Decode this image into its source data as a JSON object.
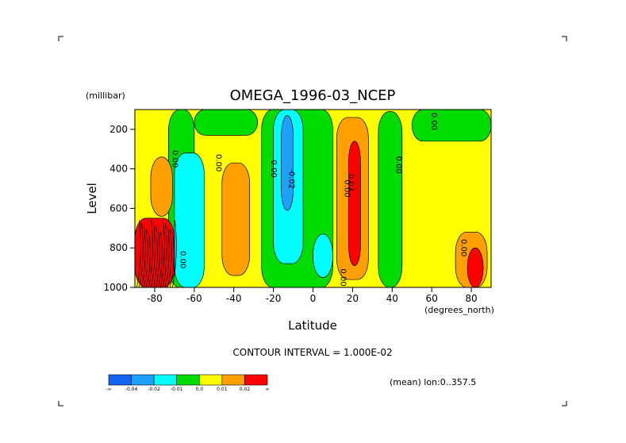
{
  "chart_data": {
    "type": "contour",
    "title": "OMEGA_1996-03_NCEP",
    "xlabel": "Latitude",
    "x_unit_label": "(degrees_north)",
    "ylabel": "Level",
    "y_unit_label": "(millibar)",
    "xlim": [
      -90,
      90
    ],
    "ylim": [
      1000,
      100
    ],
    "y_inverted": true,
    "x_ticks": [
      -80,
      -60,
      -40,
      -20,
      0,
      20,
      40,
      60,
      80
    ],
    "x_tick_labels": [
      "-80",
      "-60",
      "-40",
      "-20",
      "0",
      "20",
      "40",
      "60",
      "80"
    ],
    "y_ticks": [
      200,
      400,
      600,
      800,
      1000
    ],
    "y_tick_labels": [
      "200",
      "400",
      "600",
      "800",
      "1000"
    ],
    "contour_interval_text": "CONTOUR INTERVAL = 1.000E-02",
    "mean_text": "(mean) lon:0..357.5",
    "contour_labels": [
      {
        "text": "0.00",
        "lat": -71,
        "p": 350
      },
      {
        "text": "0.00",
        "lat": -49,
        "p": 370
      },
      {
        "text": "0.00",
        "lat": -21,
        "p": 400
      },
      {
        "text": "-0.02",
        "lat": -12,
        "p": 450
      },
      {
        "text": "0.02",
        "lat": 18,
        "p": 470
      },
      {
        "text": "0.00",
        "lat": 16,
        "p": 500
      },
      {
        "text": "0.00",
        "lat": 42,
        "p": 380
      },
      {
        "text": "0.00",
        "lat": 60,
        "p": 160
      },
      {
        "text": "0.00",
        "lat": 75,
        "p": 800
      },
      {
        "text": "0.00",
        "lat": -67,
        "p": 860
      },
      {
        "text": "0.00",
        "lat": 14,
        "p": 950
      }
    ],
    "colorbar": {
      "colors": [
        "#1464f0",
        "#1ea0ff",
        "#00ffff",
        "#00dc00",
        "#ffff00",
        "#ffa000",
        "#ff0000"
      ],
      "labels": [
        "-∞",
        "-0.04",
        "-0.02",
        "-0.01",
        "0.0",
        "0.01",
        "0.02",
        "∞"
      ]
    },
    "regions": [
      {
        "level": "positive_0_0.01",
        "color": "#ffff00",
        "lat_range": [
          -90,
          90
        ],
        "p_range": [
          100,
          1000
        ],
        "note": "background"
      },
      {
        "level": "negative_0_-0.01",
        "color": "#00dc00",
        "lat_range": [
          -73,
          -60
        ],
        "p_range": [
          100,
          1000
        ]
      },
      {
        "level": "negative_0_-0.01",
        "color": "#00dc00",
        "lat_range": [
          -60,
          -28
        ],
        "p_range": [
          100,
          230
        ]
      },
      {
        "level": "negative_0_-0.01",
        "color": "#00dc00",
        "lat_range": [
          -26,
          10
        ],
        "p_range": [
          100,
          1000
        ]
      },
      {
        "level": "negative_0_-0.01",
        "color": "#00dc00",
        "lat_range": [
          33,
          45
        ],
        "p_range": [
          110,
          1000
        ]
      },
      {
        "level": "negative_0_-0.01",
        "color": "#00dc00",
        "lat_range": [
          50,
          90
        ],
        "p_range": [
          100,
          260
        ]
      },
      {
        "level": "negative_-0.01_-0.02",
        "color": "#00ffff",
        "lat_range": [
          -70,
          -55
        ],
        "p_range": [
          320,
          1000
        ]
      },
      {
        "level": "negative_-0.01_-0.02",
        "color": "#00ffff",
        "lat_range": [
          -20,
          -5
        ],
        "p_range": [
          100,
          880
        ]
      },
      {
        "level": "negative_-0.01_-0.02",
        "color": "#00ffff",
        "lat_range": [
          0,
          10
        ],
        "p_range": [
          730,
          950
        ]
      },
      {
        "level": "negative_-0.02_-0.04",
        "color": "#1ea0ff",
        "lat_range": [
          -16,
          -10
        ],
        "p_range": [
          130,
          610
        ]
      },
      {
        "level": "positive_0.01_0.02",
        "color": "#ffa000",
        "lat_range": [
          -46,
          -32
        ],
        "p_range": [
          370,
          940
        ]
      },
      {
        "level": "positive_0.01_0.02",
        "color": "#ffa000",
        "lat_range": [
          12,
          28
        ],
        "p_range": [
          140,
          960
        ]
      },
      {
        "level": "positive_0.01_0.02",
        "color": "#ffa000",
        "lat_range": [
          -82,
          -71
        ],
        "p_range": [
          340,
          640
        ]
      },
      {
        "level": "positive_0.01_0.02",
        "color": "#ffa000",
        "lat_range": [
          72,
          88
        ],
        "p_range": [
          720,
          1000
        ]
      },
      {
        "level": "positive_above_0.02",
        "color": "#ff0000",
        "lat_range": [
          18,
          24
        ],
        "p_range": [
          260,
          890
        ]
      },
      {
        "level": "positive_above_0.02",
        "color": "#ff0000",
        "lat_range": [
          -90,
          -70
        ],
        "p_range": [
          650,
          1000
        ]
      },
      {
        "level": "positive_above_0.02",
        "color": "#ff0000",
        "lat_range": [
          78,
          86
        ],
        "p_range": [
          800,
          1000
        ]
      }
    ]
  }
}
